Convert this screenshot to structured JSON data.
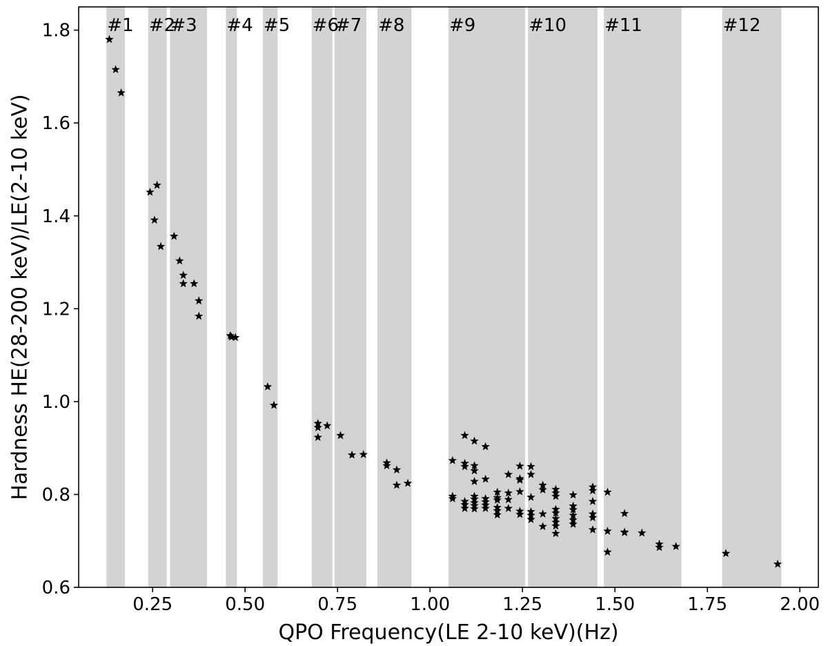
{
  "chart_data": {
    "type": "scatter",
    "title": "",
    "xlabel": "QPO Frequency(LE 2-10 keV)(Hz)",
    "ylabel": "Hardness HE(28-200 keV)/LE(2-10 keV)",
    "xlim": [
      0.05,
      2.05
    ],
    "ylim": [
      0.6,
      1.85
    ],
    "x_ticks": [
      0.25,
      0.5,
      0.75,
      1.0,
      1.25,
      1.5,
      1.75,
      2.0
    ],
    "x_tick_labels": [
      "0.25",
      "0.50",
      "0.75",
      "1.00",
      "1.25",
      "1.50",
      "1.75",
      "2.00"
    ],
    "y_ticks": [
      0.6,
      0.8,
      1.0,
      1.2,
      1.4,
      1.6,
      1.8
    ],
    "y_tick_labels": [
      "0.6",
      "0.8",
      "1.0",
      "1.2",
      "1.4",
      "1.6",
      "1.8"
    ],
    "grid": false,
    "marker": "star",
    "marker_color": "#000000",
    "band_color": "#d3d3d3",
    "bands": [
      {
        "label": "#1",
        "x_start": 0.125,
        "x_end": 0.175
      },
      {
        "label": "#2",
        "x_start": 0.238,
        "x_end": 0.288
      },
      {
        "label": "#3",
        "x_start": 0.297,
        "x_end": 0.397
      },
      {
        "label": "#4",
        "x_start": 0.448,
        "x_end": 0.478
      },
      {
        "label": "#5",
        "x_start": 0.548,
        "x_end": 0.588
      },
      {
        "label": "#6",
        "x_start": 0.68,
        "x_end": 0.736
      },
      {
        "label": "#7",
        "x_start": 0.742,
        "x_end": 0.828
      },
      {
        "label": "#8",
        "x_start": 0.858,
        "x_end": 0.95
      },
      {
        "label": "#9",
        "x_start": 1.05,
        "x_end": 1.257
      },
      {
        "label": "#10",
        "x_start": 1.265,
        "x_end": 1.453
      },
      {
        "label": "#11",
        "x_start": 1.47,
        "x_end": 1.68
      },
      {
        "label": "#12",
        "x_start": 1.79,
        "x_end": 1.95
      }
    ],
    "points": [
      {
        "x": 0.133,
        "y": 1.78
      },
      {
        "x": 0.15,
        "y": 1.715
      },
      {
        "x": 0.165,
        "y": 1.665
      },
      {
        "x": 0.243,
        "y": 1.451
      },
      {
        "x": 0.262,
        "y": 1.466
      },
      {
        "x": 0.255,
        "y": 1.391
      },
      {
        "x": 0.272,
        "y": 1.334
      },
      {
        "x": 0.308,
        "y": 1.356
      },
      {
        "x": 0.323,
        "y": 1.303
      },
      {
        "x": 0.333,
        "y": 1.272
      },
      {
        "x": 0.333,
        "y": 1.254
      },
      {
        "x": 0.362,
        "y": 1.254
      },
      {
        "x": 0.375,
        "y": 1.217
      },
      {
        "x": 0.375,
        "y": 1.184
      },
      {
        "x": 0.46,
        "y": 1.142
      },
      {
        "x": 0.463,
        "y": 1.139
      },
      {
        "x": 0.474,
        "y": 1.138
      },
      {
        "x": 0.561,
        "y": 1.032
      },
      {
        "x": 0.578,
        "y": 0.992
      },
      {
        "x": 0.697,
        "y": 0.953
      },
      {
        "x": 0.697,
        "y": 0.944
      },
      {
        "x": 0.697,
        "y": 0.923
      },
      {
        "x": 0.722,
        "y": 0.948
      },
      {
        "x": 0.758,
        "y": 0.927
      },
      {
        "x": 0.789,
        "y": 0.885
      },
      {
        "x": 0.82,
        "y": 0.886
      },
      {
        "x": 0.883,
        "y": 0.868
      },
      {
        "x": 0.883,
        "y": 0.862
      },
      {
        "x": 0.91,
        "y": 0.853
      },
      {
        "x": 0.91,
        "y": 0.82
      },
      {
        "x": 0.94,
        "y": 0.824
      },
      {
        "x": 1.061,
        "y": 0.873
      },
      {
        "x": 1.061,
        "y": 0.796
      },
      {
        "x": 1.061,
        "y": 0.791
      },
      {
        "x": 1.094,
        "y": 0.927
      },
      {
        "x": 1.094,
        "y": 0.867
      },
      {
        "x": 1.094,
        "y": 0.86
      },
      {
        "x": 1.094,
        "y": 0.785
      },
      {
        "x": 1.094,
        "y": 0.778
      },
      {
        "x": 1.094,
        "y": 0.77
      },
      {
        "x": 1.12,
        "y": 0.915
      },
      {
        "x": 1.12,
        "y": 0.862
      },
      {
        "x": 1.12,
        "y": 0.851
      },
      {
        "x": 1.12,
        "y": 0.828
      },
      {
        "x": 1.12,
        "y": 0.796
      },
      {
        "x": 1.12,
        "y": 0.79
      },
      {
        "x": 1.12,
        "y": 0.782
      },
      {
        "x": 1.12,
        "y": 0.776
      },
      {
        "x": 1.12,
        "y": 0.769
      },
      {
        "x": 1.15,
        "y": 0.903
      },
      {
        "x": 1.15,
        "y": 0.833
      },
      {
        "x": 1.15,
        "y": 0.791
      },
      {
        "x": 1.15,
        "y": 0.784
      },
      {
        "x": 1.15,
        "y": 0.777
      },
      {
        "x": 1.15,
        "y": 0.77
      },
      {
        "x": 1.182,
        "y": 0.805
      },
      {
        "x": 1.182,
        "y": 0.793
      },
      {
        "x": 1.182,
        "y": 0.788
      },
      {
        "x": 1.182,
        "y": 0.772
      },
      {
        "x": 1.182,
        "y": 0.765
      },
      {
        "x": 1.182,
        "y": 0.756
      },
      {
        "x": 1.212,
        "y": 0.843
      },
      {
        "x": 1.212,
        "y": 0.803
      },
      {
        "x": 1.212,
        "y": 0.789
      },
      {
        "x": 1.212,
        "y": 0.77
      },
      {
        "x": 1.243,
        "y": 0.861
      },
      {
        "x": 1.243,
        "y": 0.834
      },
      {
        "x": 1.243,
        "y": 0.831
      },
      {
        "x": 1.243,
        "y": 0.806
      },
      {
        "x": 1.243,
        "y": 0.764
      },
      {
        "x": 1.243,
        "y": 0.757
      },
      {
        "x": 1.273,
        "y": 0.86
      },
      {
        "x": 1.273,
        "y": 0.843
      },
      {
        "x": 1.273,
        "y": 0.794
      },
      {
        "x": 1.273,
        "y": 0.763
      },
      {
        "x": 1.273,
        "y": 0.755
      },
      {
        "x": 1.273,
        "y": 0.746
      },
      {
        "x": 1.305,
        "y": 0.82
      },
      {
        "x": 1.305,
        "y": 0.81
      },
      {
        "x": 1.305,
        "y": 0.758
      },
      {
        "x": 1.305,
        "y": 0.731
      },
      {
        "x": 1.34,
        "y": 0.811
      },
      {
        "x": 1.34,
        "y": 0.803
      },
      {
        "x": 1.34,
        "y": 0.796
      },
      {
        "x": 1.34,
        "y": 0.768
      },
      {
        "x": 1.34,
        "y": 0.76
      },
      {
        "x": 1.34,
        "y": 0.748
      },
      {
        "x": 1.34,
        "y": 0.74
      },
      {
        "x": 1.34,
        "y": 0.732
      },
      {
        "x": 1.34,
        "y": 0.716
      },
      {
        "x": 1.387,
        "y": 0.799
      },
      {
        "x": 1.387,
        "y": 0.775
      },
      {
        "x": 1.387,
        "y": 0.767
      },
      {
        "x": 1.387,
        "y": 0.755
      },
      {
        "x": 1.387,
        "y": 0.745
      },
      {
        "x": 1.387,
        "y": 0.736
      },
      {
        "x": 1.44,
        "y": 0.816
      },
      {
        "x": 1.44,
        "y": 0.808
      },
      {
        "x": 1.44,
        "y": 0.785
      },
      {
        "x": 1.44,
        "y": 0.758
      },
      {
        "x": 1.44,
        "y": 0.75
      },
      {
        "x": 1.44,
        "y": 0.724
      },
      {
        "x": 1.48,
        "y": 0.805
      },
      {
        "x": 1.48,
        "y": 0.721
      },
      {
        "x": 1.48,
        "y": 0.676
      },
      {
        "x": 1.526,
        "y": 0.759
      },
      {
        "x": 1.526,
        "y": 0.719
      },
      {
        "x": 1.526,
        "y": 0.718
      },
      {
        "x": 1.573,
        "y": 0.717
      },
      {
        "x": 1.62,
        "y": 0.693
      },
      {
        "x": 1.62,
        "y": 0.686
      },
      {
        "x": 1.665,
        "y": 0.688
      },
      {
        "x": 1.8,
        "y": 0.673
      },
      {
        "x": 1.94,
        "y": 0.65
      }
    ]
  }
}
